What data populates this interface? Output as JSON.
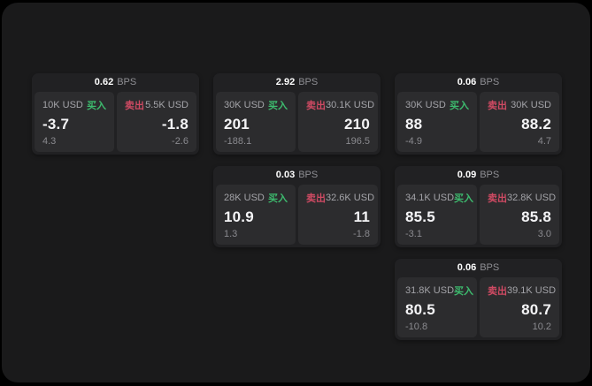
{
  "labels": {
    "bps_unit": "BPS",
    "buy": "买入",
    "sell": "卖出"
  },
  "colors": {
    "outer": "#000000",
    "window": "#1a1a1b",
    "card": "#212123",
    "panel": "#2c2c2e",
    "buy": "#3dbb6e",
    "sell": "#cf4a63"
  },
  "cards": [
    {
      "row": 1,
      "col": 1,
      "bps": "0.62",
      "buy": {
        "amount": "10K USD",
        "price": "-3.7",
        "sub": "4.3"
      },
      "sell": {
        "amount": "5.5K USD",
        "price": "-1.8",
        "sub": "-2.6"
      }
    },
    {
      "row": 1,
      "col": 2,
      "bps": "2.92",
      "buy": {
        "amount": "30K USD",
        "price": "201",
        "sub": "-188.1"
      },
      "sell": {
        "amount": "30.1K USD",
        "price": "210",
        "sub": "196.5"
      }
    },
    {
      "row": 1,
      "col": 3,
      "bps": "0.06",
      "buy": {
        "amount": "30K USD",
        "price": "88",
        "sub": "-4.9"
      },
      "sell": {
        "amount": "30K USD",
        "price": "88.2",
        "sub": "4.7"
      }
    },
    {
      "row": 2,
      "col": 2,
      "bps": "0.03",
      "buy": {
        "amount": "28K USD",
        "price": "10.9",
        "sub": "1.3"
      },
      "sell": {
        "amount": "32.6K USD",
        "price": "11",
        "sub": "-1.8"
      }
    },
    {
      "row": 2,
      "col": 3,
      "bps": "0.09",
      "buy": {
        "amount": "34.1K USD",
        "price": "85.5",
        "sub": "-3.1"
      },
      "sell": {
        "amount": "32.8K USD",
        "price": "85.8",
        "sub": "3.0"
      }
    },
    {
      "row": 3,
      "col": 3,
      "bps": "0.06",
      "buy": {
        "amount": "31.8K USD",
        "price": "80.5",
        "sub": "-10.8"
      },
      "sell": {
        "amount": "39.1K USD",
        "price": "80.7",
        "sub": "10.2"
      }
    }
  ]
}
